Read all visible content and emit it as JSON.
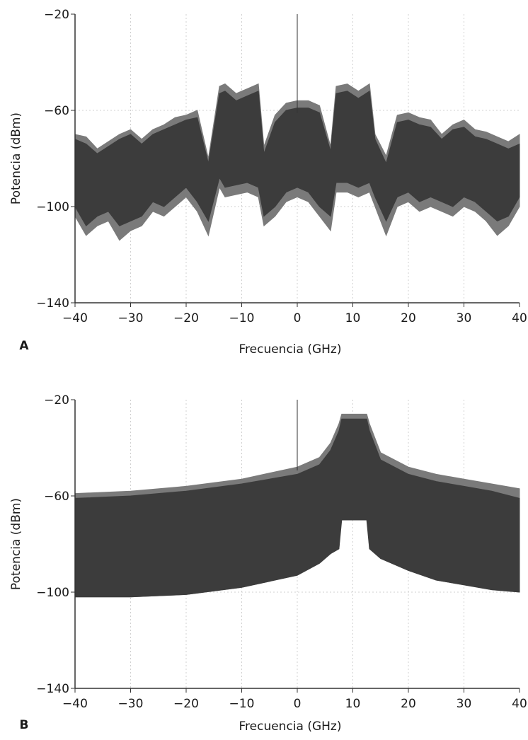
{
  "chart_data": [
    {
      "type": "area",
      "panel_label": "A",
      "xlabel": "Frecuencia (GHz)",
      "ylabel": "Potencia (dBm)",
      "xlim": [
        -40,
        40
      ],
      "ylim": [
        -140,
        -20
      ],
      "xticks": [
        -40,
        -30,
        -20,
        -10,
        0,
        10,
        20,
        30,
        40
      ],
      "yticks": [
        -140,
        -100,
        -60,
        -20
      ],
      "grid": true,
      "series": [
        {
          "color": "#7a7a7a",
          "x": [
            -40,
            -38,
            -36,
            -34,
            -32,
            -30,
            -28,
            -26,
            -24,
            -22,
            -20,
            -18,
            -16,
            -14,
            -13,
            -11,
            -9,
            -7,
            -6,
            -4,
            -2,
            0,
            2,
            4,
            -0.01,
            6,
            7,
            9,
            11,
            13,
            14,
            16,
            18,
            20,
            22,
            24,
            26,
            28,
            30,
            32,
            34,
            36,
            38,
            40
          ],
          "upper": [
            -70,
            -71,
            -76,
            -73,
            -70,
            -68,
            -72,
            -68,
            -66,
            -63,
            -62,
            -60,
            -80,
            -50,
            -49,
            -53,
            -51,
            -49,
            -75,
            -62,
            -57,
            -56,
            -56,
            -58,
            -56,
            -75,
            -50,
            -49,
            -52,
            -49,
            -70,
            -79,
            -62,
            -61,
            -63,
            -64,
            -70,
            -66,
            -64,
            -68,
            -69,
            -71,
            -73,
            -70
          ],
          "lower": [
            -104,
            -112,
            -108,
            -106,
            -114,
            -110,
            -108,
            -102,
            -104,
            -100,
            -96,
            -102,
            -112,
            -92,
            -96,
            -95,
            -94,
            -96,
            -108,
            -104,
            -98,
            -96,
            -98,
            -104,
            -96,
            -110,
            -94,
            -94,
            -96,
            -94,
            -100,
            -112,
            -100,
            -98,
            -102,
            -100,
            -102,
            -104,
            -100,
            -102,
            -106,
            -112,
            -108,
            -100
          ]
        },
        {
          "color": "#3c3c3c",
          "x": [
            -40,
            -38,
            -36,
            -34,
            -32,
            -30,
            -28,
            -26,
            -24,
            -22,
            -20,
            -18,
            -16,
            -14,
            -13,
            -11,
            -9,
            -7,
            -6,
            -4,
            -2,
            0,
            2,
            4,
            6,
            7,
            9,
            11,
            13,
            14,
            16,
            18,
            20,
            22,
            24,
            26,
            28,
            30,
            32,
            34,
            36,
            38,
            40
          ],
          "upper": [
            -72,
            -74,
            -78,
            -75,
            -72,
            -70,
            -74,
            -70,
            -68,
            -66,
            -64,
            -63,
            -82,
            -53,
            -52,
            -56,
            -54,
            -52,
            -78,
            -65,
            -60,
            -59,
            -59,
            -61,
            -77,
            -53,
            -52,
            -55,
            -52,
            -72,
            -82,
            -65,
            -64,
            -66,
            -67,
            -72,
            -68,
            -67,
            -71,
            -72,
            -74,
            -76,
            -74
          ],
          "lower": [
            -100,
            -108,
            -104,
            -102,
            -108,
            -106,
            -104,
            -98,
            -100,
            -96,
            -92,
            -98,
            -106,
            -88,
            -92,
            -91,
            -90,
            -92,
            -104,
            -100,
            -94,
            -92,
            -94,
            -100,
            -104,
            -90,
            -90,
            -92,
            -90,
            -96,
            -106,
            -96,
            -94,
            -98,
            -96,
            -98,
            -100,
            -96,
            -98,
            -102,
            -106,
            -104,
            -96
          ]
        }
      ]
    },
    {
      "type": "area",
      "panel_label": "B",
      "xlabel": "Frecuencia (GHz)",
      "ylabel": "Potencia (dBm)",
      "xlim": [
        -40,
        40
      ],
      "ylim": [
        -140,
        -20
      ],
      "xticks": [
        -40,
        -30,
        -20,
        -10,
        0,
        10,
        20,
        30,
        40
      ],
      "yticks": [
        -140,
        -100,
        -60,
        -20
      ],
      "grid": true,
      "series": [
        {
          "color": "#7a7a7a",
          "x": [
            -40,
            -30,
            -20,
            -10,
            0,
            4,
            6,
            7.5,
            8,
            12.5,
            13,
            15,
            20,
            25,
            30,
            35,
            40
          ],
          "upper": [
            -59,
            -58,
            -56,
            -53,
            -48,
            -44,
            -38,
            -30,
            -26,
            -26,
            -30,
            -42,
            -48,
            -51,
            -53,
            -55,
            -57
          ],
          "lower": [
            -102,
            -102,
            -101,
            -98,
            -93,
            -88,
            -84,
            -82,
            -66,
            -66,
            -82,
            -86,
            -91,
            -95,
            -97,
            -99,
            -100
          ]
        },
        {
          "color": "#3c3c3c",
          "x": [
            -40,
            -30,
            -20,
            -10,
            0,
            4,
            6,
            7.5,
            8,
            12.5,
            13,
            15,
            20,
            25,
            30,
            35,
            40
          ],
          "upper": [
            -61,
            -60,
            -58,
            -55,
            -51,
            -47,
            -41,
            -33,
            -28,
            -28,
            -33,
            -45,
            -51,
            -54,
            -56,
            -58,
            -61
          ],
          "lower": [
            -102,
            -102,
            -101,
            -98,
            -93,
            -88,
            -84,
            -82,
            -70,
            -70,
            -82,
            -86,
            -91,
            -95,
            -97,
            -99,
            -100
          ]
        }
      ]
    }
  ]
}
